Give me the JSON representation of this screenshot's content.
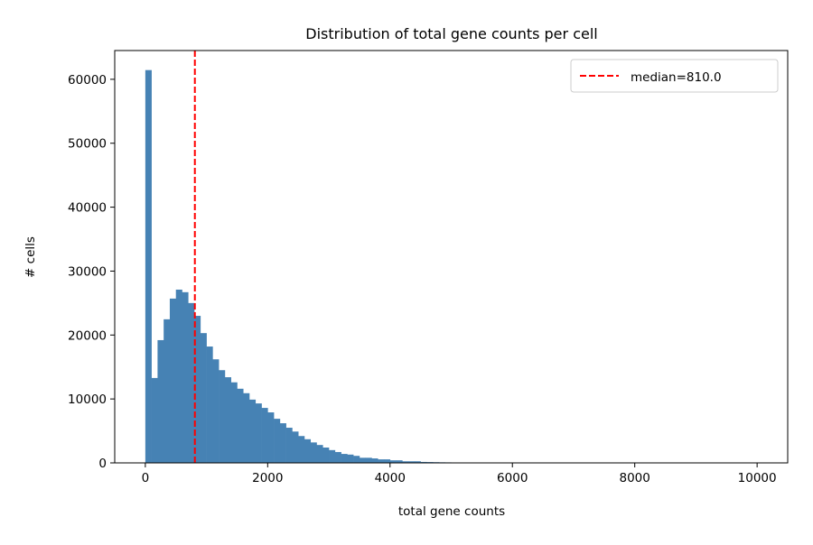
{
  "chart_data": {
    "type": "bar",
    "subtype": "histogram",
    "title": "Distribution of total gene counts per cell",
    "xlabel": "total gene counts",
    "ylabel": "# cells",
    "xlim": [
      -500,
      10500
    ],
    "ylim": [
      0,
      64500
    ],
    "xticks": [
      0,
      2000,
      4000,
      6000,
      8000,
      10000
    ],
    "yticks": [
      0,
      10000,
      20000,
      30000,
      40000,
      50000,
      60000
    ],
    "grid": false,
    "bin_width": 100,
    "bin_start": 0,
    "values": [
      61440,
      13280,
      19200,
      22460,
      25700,
      27100,
      26700,
      25000,
      23000,
      20300,
      18200,
      16200,
      14500,
      13400,
      12600,
      11600,
      10900,
      9900,
      9300,
      8600,
      7900,
      6900,
      6200,
      5500,
      4900,
      4200,
      3700,
      3200,
      2800,
      2400,
      2000,
      1700,
      1400,
      1300,
      1100,
      800,
      800,
      700,
      550,
      550,
      400,
      400,
      250,
      250,
      250,
      150,
      130,
      110,
      90,
      80,
      70,
      60,
      50,
      45,
      40,
      35,
      30,
      25,
      20,
      15,
      10,
      8,
      6,
      5,
      4,
      3,
      3,
      2,
      2,
      2,
      1,
      1,
      1,
      1,
      1,
      1,
      1,
      1,
      1,
      1,
      1,
      1,
      1,
      1,
      1,
      1,
      1,
      1,
      1,
      1,
      1,
      1,
      1,
      1,
      1,
      1,
      1,
      1,
      1,
      1
    ],
    "bar_color": "#4682b4",
    "median": {
      "value": 810.0,
      "label": "median=810.0",
      "color": "#ff0000",
      "style": "dashed"
    },
    "legend_position": "top-right"
  }
}
